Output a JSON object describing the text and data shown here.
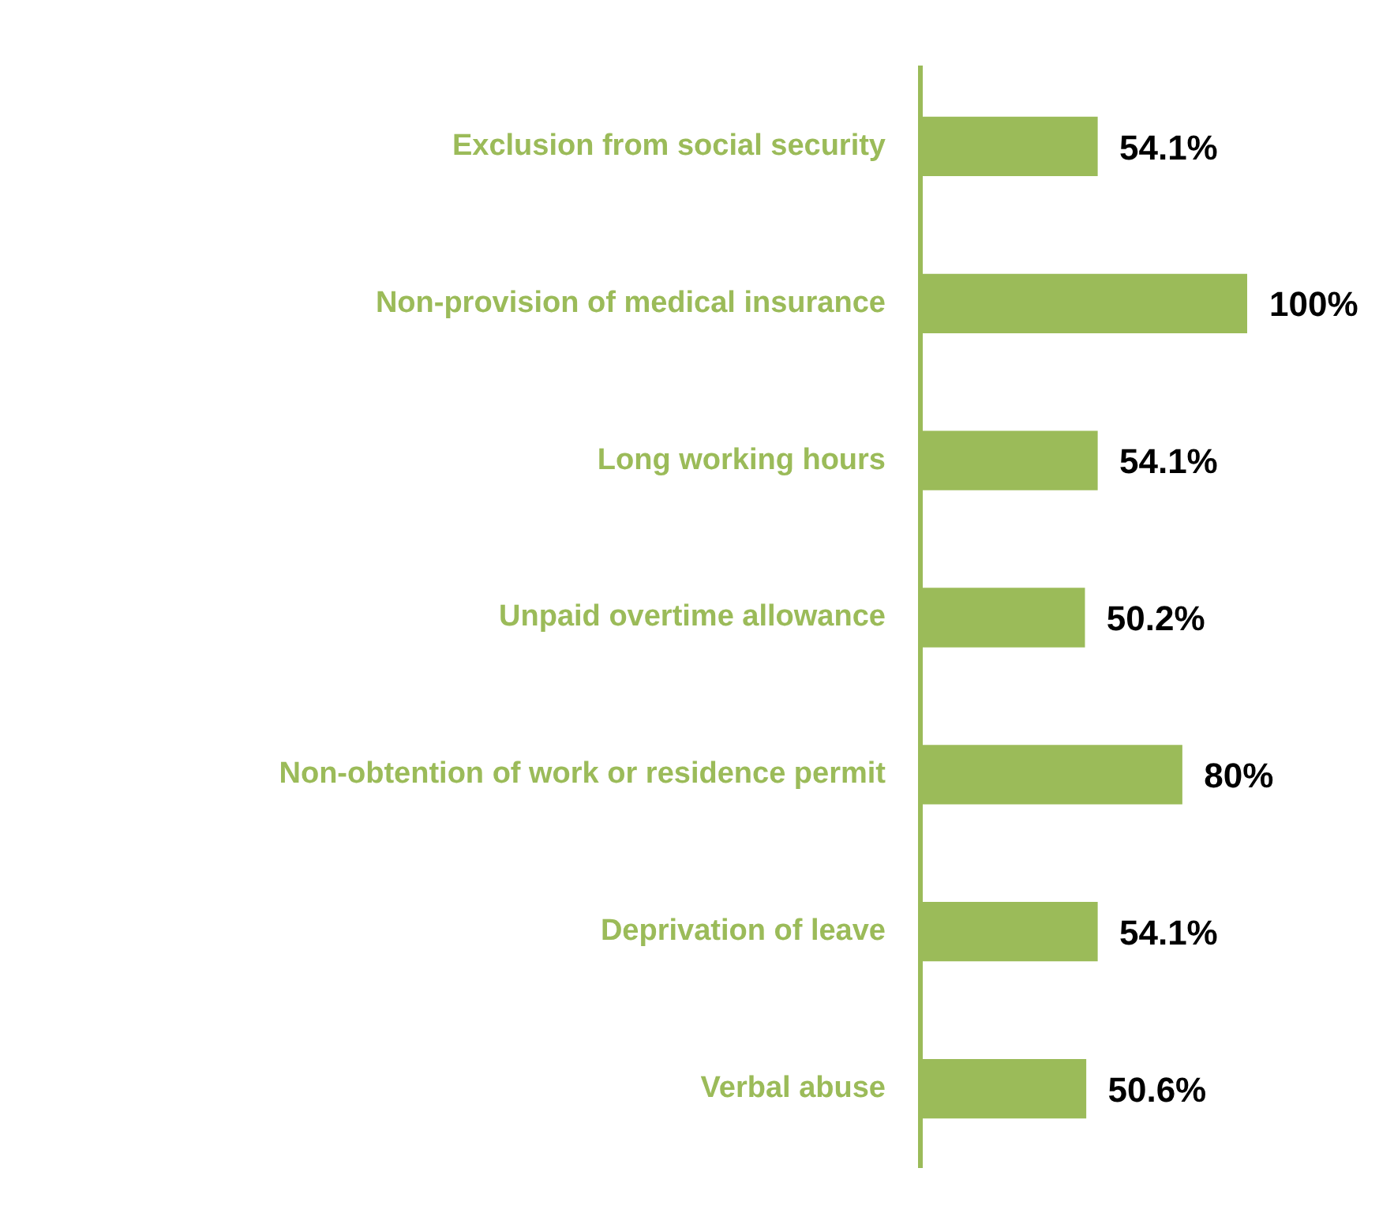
{
  "chart_data": {
    "type": "bar",
    "orientation": "horizontal",
    "categories": [
      "Exclusion from social security",
      "Non-provision of medical insurance",
      "Long working hours",
      "Unpaid overtime allowance",
      "Non-obtention of work or residence permit",
      "Deprivation of leave",
      "Verbal abuse"
    ],
    "values": [
      54.1,
      100,
      54.1,
      50.2,
      80,
      54.1,
      50.6
    ],
    "value_labels": [
      "54.1%",
      "100%",
      "54.1%",
      "50.2%",
      "80%",
      "54.1%",
      "50.6%"
    ],
    "color": "#9bbb59",
    "legend": false,
    "tick_labels": "y"
  }
}
